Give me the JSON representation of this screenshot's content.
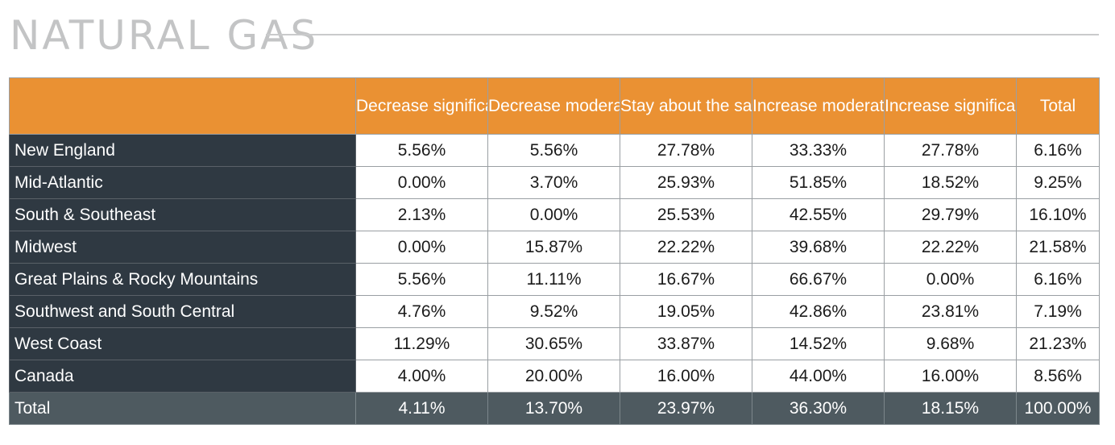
{
  "header": {
    "title": "NATURAL GAS"
  },
  "table": {
    "columns": [
      "Decrease significantly",
      "Decrease moderately",
      "Stay about the same",
      "Increase moderately",
      "Increase significantly",
      "Total"
    ],
    "rows": [
      {
        "label": "New England",
        "values": [
          "5.56%",
          "5.56%",
          "27.78%",
          "33.33%",
          "27.78%",
          "6.16%"
        ]
      },
      {
        "label": "Mid-Atlantic",
        "values": [
          "0.00%",
          "3.70%",
          "25.93%",
          "51.85%",
          "18.52%",
          "9.25%"
        ]
      },
      {
        "label": "South & Southeast",
        "values": [
          "2.13%",
          "0.00%",
          "25.53%",
          "42.55%",
          "29.79%",
          "16.10%"
        ]
      },
      {
        "label": "Midwest",
        "values": [
          "0.00%",
          "15.87%",
          "22.22%",
          "39.68%",
          "22.22%",
          "21.58%"
        ]
      },
      {
        "label": "Great Plains & Rocky Mountains",
        "values": [
          "5.56%",
          "11.11%",
          "16.67%",
          "66.67%",
          "0.00%",
          "6.16%"
        ]
      },
      {
        "label": "Southwest and South Central",
        "values": [
          "4.76%",
          "9.52%",
          "19.05%",
          "42.86%",
          "23.81%",
          "7.19%"
        ]
      },
      {
        "label": "West Coast",
        "values": [
          "11.29%",
          "30.65%",
          "33.87%",
          "14.52%",
          "9.68%",
          "21.23%"
        ]
      },
      {
        "label": "Canada",
        "values": [
          "4.00%",
          "20.00%",
          "16.00%",
          "44.00%",
          "16.00%",
          "8.56%"
        ]
      }
    ],
    "total": {
      "label": "Total",
      "values": [
        "4.11%",
        "13.70%",
        "23.97%",
        "36.30%",
        "18.15%",
        "100.00%"
      ]
    }
  },
  "colors": {
    "header_bg": "#ea9133",
    "row_label_bg": "#2f3942",
    "total_row_bg": "#4e5a60",
    "title_text": "#c3c4c5"
  }
}
